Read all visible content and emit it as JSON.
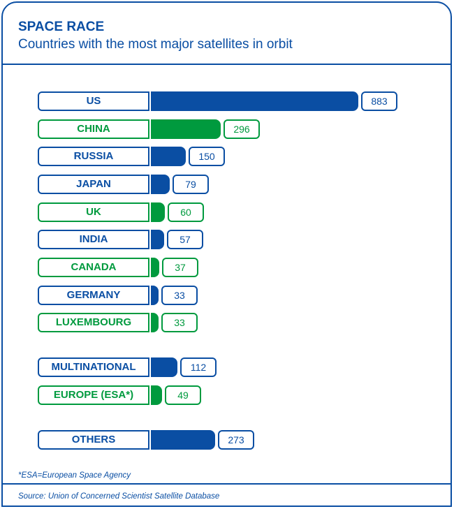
{
  "header": {
    "title": "SPACE RACE",
    "subtitle": "Countries with the most major satellites in orbit"
  },
  "footnote": "*ESA=European Space Agency",
  "source": "Source: Union of Concerned Scientist Satellite Database",
  "colors": {
    "blue": "#0a4ea3",
    "green": "#009a3e"
  },
  "chart_data": {
    "type": "bar",
    "orientation": "horizontal",
    "title": "SPACE RACE",
    "subtitle": "Countries with the most major satellites in orbit",
    "categories": [
      "US",
      "CHINA",
      "RUSSIA",
      "JAPAN",
      "UK",
      "INDIA",
      "CANADA",
      "GERMANY",
      "LUXEMBOURG",
      "MULTINATIONAL",
      "EUROPE (ESA*)",
      "OTHERS"
    ],
    "values": [
      883,
      296,
      150,
      79,
      60,
      57,
      37,
      33,
      33,
      112,
      49,
      273
    ],
    "value_labels": [
      "883",
      "296",
      "150",
      "79",
      "60",
      "57",
      "37",
      "33",
      "33",
      "112",
      "49",
      "273"
    ],
    "colors": [
      "blue",
      "green",
      "blue",
      "blue",
      "green",
      "blue",
      "green",
      "blue",
      "green",
      "blue",
      "green",
      "blue"
    ],
    "groups": [
      0,
      0,
      0,
      0,
      0,
      0,
      0,
      0,
      0,
      1,
      1,
      2
    ]
  }
}
